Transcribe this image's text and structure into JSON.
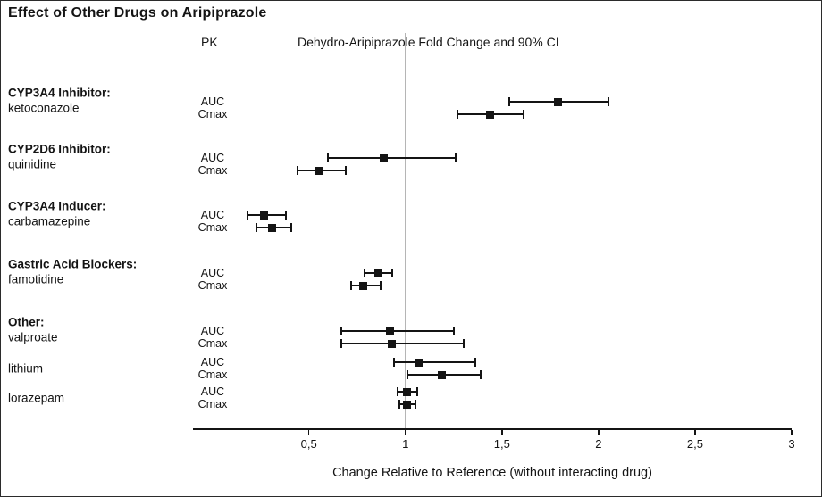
{
  "title": "Effect of Other Drugs on Aripiprazole",
  "header": {
    "pk_label": "PK",
    "ci_label": "Dehydro-Aripiprazole Fold Change and 90% CI"
  },
  "xaxis": {
    "label": "Change Relative to Reference (without interacting drug)",
    "ticks": [
      {
        "value": 0.5,
        "label": "0,5"
      },
      {
        "value": 1,
        "label": "1"
      },
      {
        "value": 1.5,
        "label": "1,5"
      },
      {
        "value": 2,
        "label": "2"
      },
      {
        "value": 2.5,
        "label": "2,5"
      },
      {
        "value": 3,
        "label": "3"
      }
    ]
  },
  "colors": {
    "marker": "#141414",
    "axis": "#141414",
    "reference_line": "#b5b5b5",
    "text": "#141414",
    "background": "#ffffff"
  },
  "chart_data": {
    "type": "forest",
    "title": "Effect of Other Drugs on Aripiprazole",
    "subtitle": "Dehydro-Aripiprazole Fold Change and 90% CI",
    "xlabel": "Change Relative to Reference (without interacting drug)",
    "xlim": [
      -0.1,
      3
    ],
    "reference_line": 1,
    "ci_level": "90%",
    "pk_metrics": [
      "AUC",
      "Cmax"
    ],
    "groups": [
      {
        "label": "CYP3A4 Inhibitor:",
        "drugs": [
          {
            "name": "ketoconazole",
            "rows": [
              {
                "pk": "AUC",
                "point": 1.79,
                "lo": 1.54,
                "hi": 2.05
              },
              {
                "pk": "Cmax",
                "point": 1.44,
                "lo": 1.27,
                "hi": 1.61
              }
            ]
          }
        ]
      },
      {
        "label": "CYP2D6 Inhibitor:",
        "drugs": [
          {
            "name": "quinidine",
            "rows": [
              {
                "pk": "AUC",
                "point": 0.89,
                "lo": 0.6,
                "hi": 1.26
              },
              {
                "pk": "Cmax",
                "point": 0.55,
                "lo": 0.44,
                "hi": 0.69
              }
            ]
          }
        ]
      },
      {
        "label": "CYP3A4 Inducer:",
        "drugs": [
          {
            "name": "carbamazepine",
            "rows": [
              {
                "pk": "AUC",
                "point": 0.27,
                "lo": 0.18,
                "hi": 0.38
              },
              {
                "pk": "Cmax",
                "point": 0.31,
                "lo": 0.23,
                "hi": 0.41
              }
            ]
          }
        ]
      },
      {
        "label": "Gastric Acid Blockers:",
        "drugs": [
          {
            "name": "famotidine",
            "rows": [
              {
                "pk": "AUC",
                "point": 0.86,
                "lo": 0.79,
                "hi": 0.93
              },
              {
                "pk": "Cmax",
                "point": 0.78,
                "lo": 0.72,
                "hi": 0.87
              }
            ]
          }
        ]
      },
      {
        "label": "Other:",
        "drugs": [
          {
            "name": "valproate",
            "rows": [
              {
                "pk": "AUC",
                "point": 0.92,
                "lo": 0.67,
                "hi": 1.25
              },
              {
                "pk": "Cmax",
                "point": 0.93,
                "lo": 0.67,
                "hi": 1.3
              }
            ]
          },
          {
            "name": "lithium",
            "rows": [
              {
                "pk": "AUC",
                "point": 1.07,
                "lo": 0.94,
                "hi": 1.36
              },
              {
                "pk": "Cmax",
                "point": 1.19,
                "lo": 1.01,
                "hi": 1.39
              }
            ]
          },
          {
            "name": "lorazepam",
            "rows": [
              {
                "pk": "AUC",
                "point": 1.01,
                "lo": 0.96,
                "hi": 1.06
              },
              {
                "pk": "Cmax",
                "point": 1.01,
                "lo": 0.97,
                "hi": 1.05
              }
            ]
          }
        ]
      }
    ]
  }
}
